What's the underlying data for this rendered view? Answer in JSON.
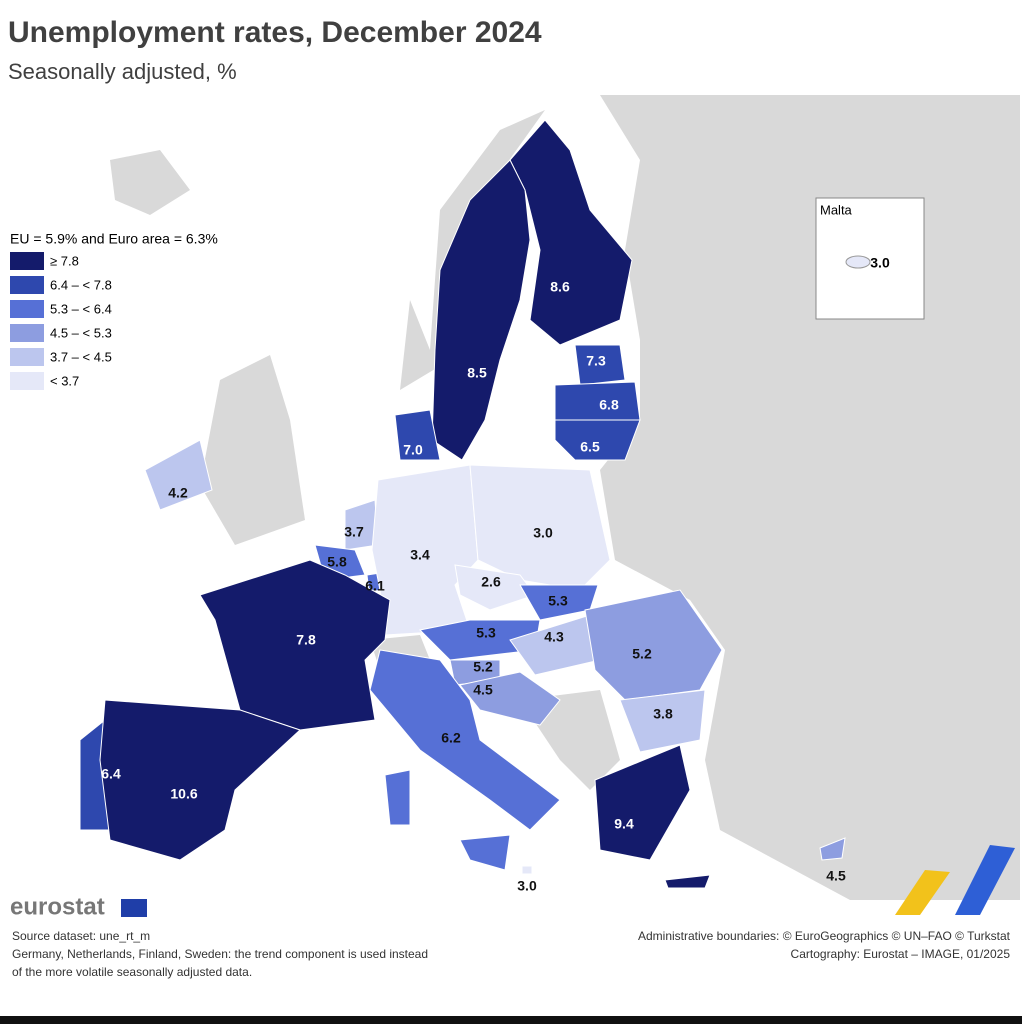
{
  "header": {
    "title": "Unemployment rates, December 2024",
    "subtitle": "Seasonally adjusted, %"
  },
  "legend": {
    "title": "EU = 5.9% and Euro area = 6.3%",
    "items": [
      {
        "label": "≥ 7.8",
        "color": "#141b6b"
      },
      {
        "label": "6.4 – < 7.8",
        "color": "#2e48ae"
      },
      {
        "label": "5.3 – < 6.4",
        "color": "#5670d6"
      },
      {
        "label": "4.5 – < 5.3",
        "color": "#8d9de0"
      },
      {
        "label": "3.7 – < 4.5",
        "color": "#bcc6ee"
      },
      {
        "label": "< 3.7",
        "color": "#e5e8f8"
      }
    ]
  },
  "regions": [
    {
      "label": "8.6",
      "color": "#141b6b"
    },
    {
      "label": "8.5",
      "color": "#141b6b"
    },
    {
      "label": "7.3",
      "color": "#2e48ae"
    },
    {
      "label": "6.8",
      "color": "#2e48ae"
    },
    {
      "label": "6.5",
      "color": "#2e48ae"
    },
    {
      "label": "7.0",
      "color": "#2e48ae"
    },
    {
      "label": "4.2",
      "color": "#bcc6ee"
    },
    {
      "label": "3.7",
      "color": "#bcc6ee"
    },
    {
      "label": "5.8",
      "color": "#5670d6"
    },
    {
      "label": "6.1",
      "color": "#5670d6"
    },
    {
      "label": "3.4",
      "color": "#e5e8f8"
    },
    {
      "label": "3.0",
      "color": "#e5e8f8"
    },
    {
      "label": "2.6",
      "color": "#e5e8f8"
    },
    {
      "label": "5.3",
      "color": "#5670d6"
    },
    {
      "label": "5.3",
      "color": "#5670d6"
    },
    {
      "label": "4.3",
      "color": "#bcc6ee"
    },
    {
      "label": "5.2",
      "color": "#8d9de0"
    },
    {
      "label": "5.2",
      "color": "#8d9de0"
    },
    {
      "label": "4.5",
      "color": "#8d9de0"
    },
    {
      "label": "7.8",
      "color": "#141b6b"
    },
    {
      "label": "3.8",
      "color": "#bcc6ee"
    },
    {
      "label": "6.2",
      "color": "#5670d6"
    },
    {
      "label": "6.4",
      "color": "#2e48ae"
    },
    {
      "label": "10.6",
      "color": "#141b6b"
    },
    {
      "label": "9.4",
      "color": "#141b6b"
    },
    {
      "label": "3.0",
      "color": "#e5e8f8"
    },
    {
      "label": "4.5",
      "color": "#8d9de0"
    }
  ],
  "inset": {
    "title": "Malta",
    "label": "3.0"
  },
  "footer": {
    "logo": "eurostat",
    "source": [
      "Source dataset: une_rt_m",
      "Germany, Netherlands, Finland, Sweden: the trend component is used instead",
      "of the more volatile seasonally adjusted data."
    ],
    "credits": [
      "Administrative boundaries: © EuroGeographics © UN–FAO © Turkstat",
      "Cartography: Eurostat – IMAGE, 01/2025"
    ]
  }
}
